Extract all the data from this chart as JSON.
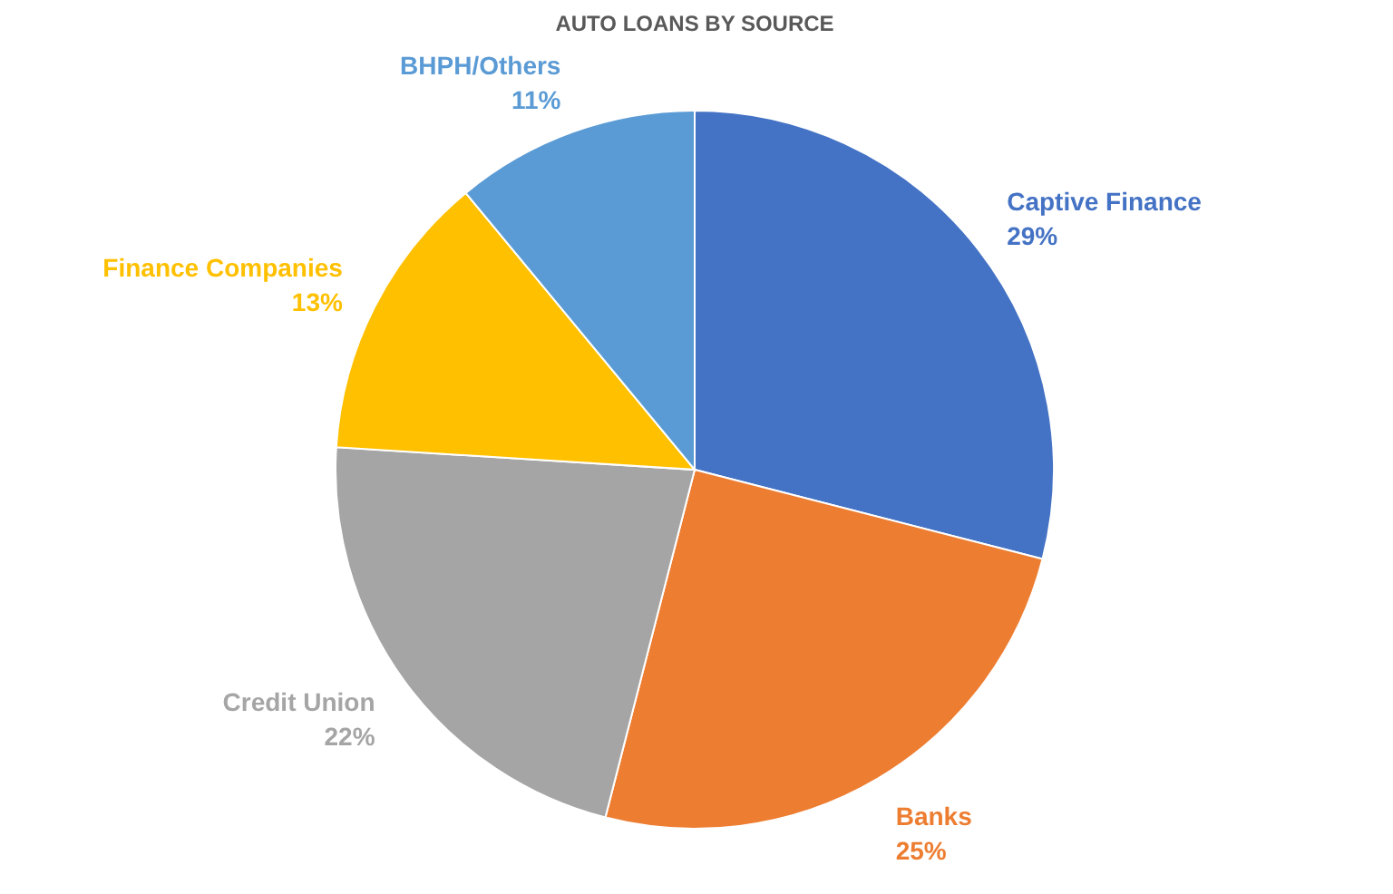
{
  "chart_data": {
    "type": "pie",
    "title": "AUTO LOANS BY SOURCE",
    "categories": [
      "Captive Finance",
      "Banks",
      "Credit Union",
      "Finance Companies",
      "BHPH/Others"
    ],
    "values": [
      29,
      25,
      22,
      13,
      11
    ],
    "colors": [
      "#4472c4",
      "#ed7d31",
      "#a5a5a5",
      "#ffc000",
      "#5b9bd5"
    ],
    "value_labels": [
      "29%",
      "25%",
      "22%",
      "13%",
      "11%"
    ]
  }
}
